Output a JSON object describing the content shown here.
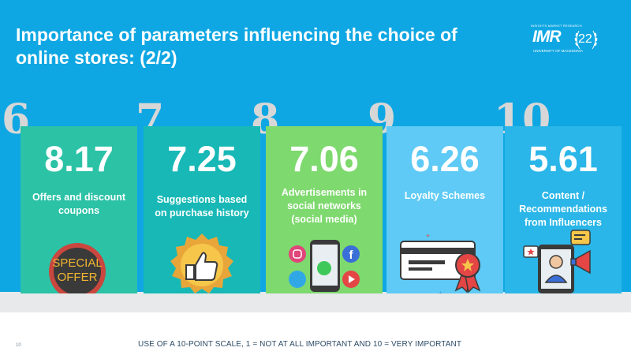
{
  "title": "Importance of parameters influencing the choice of online stores: (2/2)",
  "logo": {
    "small_text": "INSIGHTS MARKET RESEARCH",
    "main_text": "IMR",
    "sub_text": "UNIVERSITY OF MACEDONIA",
    "number": "22"
  },
  "items": [
    {
      "rank": "6",
      "value": "8.17",
      "label": "Offers and discount coupons",
      "color": "#2bc2a6",
      "icon": "special-offer-icon",
      "icon_text_1": "SPECIAL",
      "icon_text_2": "OFFER"
    },
    {
      "rank": "7",
      "value": "7.25",
      "label": "Suggestions based on purchase history",
      "color": "#17b8b6",
      "icon": "thumbs-up-badge-icon"
    },
    {
      "rank": "8",
      "value": "7.06",
      "label": "Advertisements in social networks (social media)",
      "color": "#7ed96e",
      "icon": "social-media-phone-icon"
    },
    {
      "rank": "9",
      "value": "6.26",
      "label": "Loyalty Schemes",
      "color": "#5ecaf5",
      "icon": "loyalty-card-icon"
    },
    {
      "rank": "10",
      "value": "5.61",
      "label": "Content / Recommendations from Influencers",
      "color": "#2ab6e8",
      "icon": "influencer-phone-icon"
    }
  ],
  "footer": {
    "page_number": "10",
    "note": "USE OF A 10-POINT SCALE, 1 = NOT AT ALL IMPORTANT AND 10 = VERY IMPORTANT"
  }
}
